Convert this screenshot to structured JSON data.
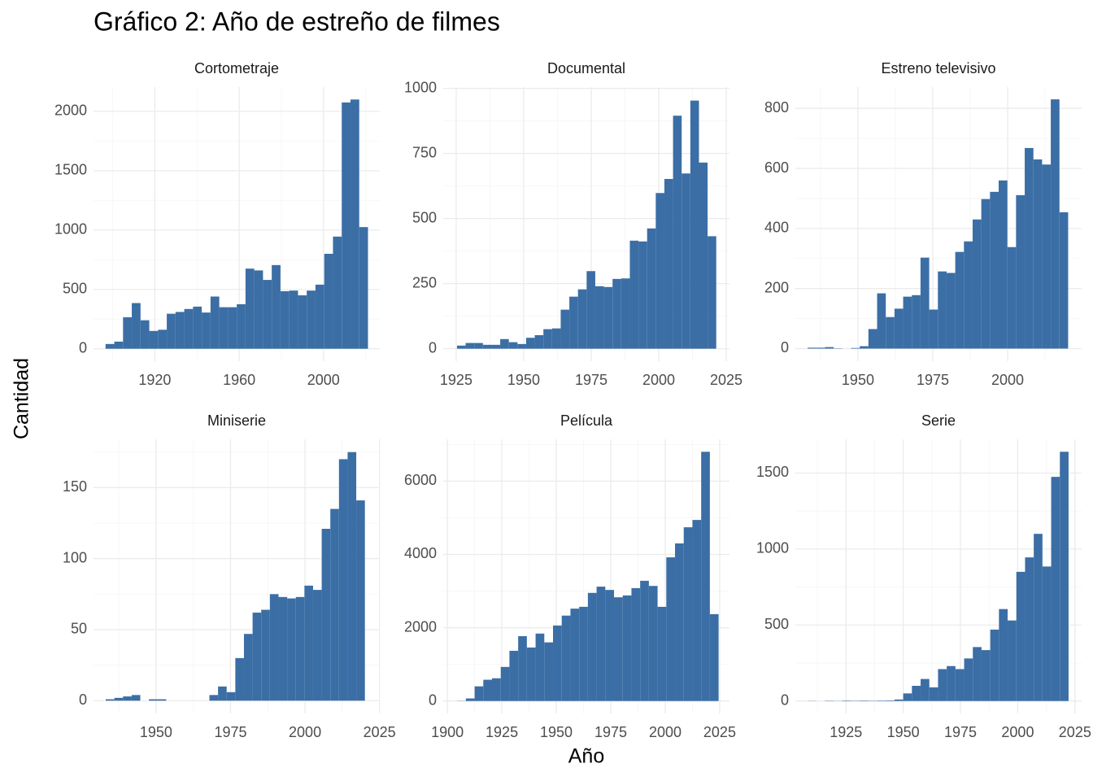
{
  "title": "Gráfico 2: Año de estreño de filmes",
  "x_label": "Año",
  "y_label": "Cantidad",
  "chart_data": [
    {
      "type": "histogram",
      "title": "Cortometraje",
      "color": "#3b6ea5",
      "grid": true,
      "bins": [
        1896.6,
        1900.75,
        1904.9,
        1909.05,
        1913.2,
        1917.35,
        1921.5,
        1925.65,
        1929.8,
        1933.95,
        1938.1,
        1942.25,
        1946.4,
        1950.55,
        1954.7,
        1958.85,
        1963,
        1967.15,
        1971.3,
        1975.45,
        1979.6,
        1983.75,
        1987.9,
        1992.05,
        1996.2,
        2000.35,
        2004.5,
        2008.65,
        2012.8,
        2016.95,
        2021.1
      ],
      "counts": [
        40,
        60,
        265,
        385,
        240,
        150,
        160,
        295,
        310,
        335,
        355,
        305,
        440,
        350,
        350,
        375,
        675,
        660,
        580,
        705,
        485,
        490,
        450,
        490,
        540,
        800,
        945,
        2075,
        2100,
        1025
      ],
      "xlim": [
        1890.9,
        2026.7
      ],
      "xticks": [
        1920,
        1960,
        2000
      ],
      "ylim": [
        -105,
        2205
      ],
      "yticks": [
        0,
        500,
        1000,
        1500,
        2000
      ]
    },
    {
      "type": "histogram",
      "title": "Documental",
      "color": "#3b6ea5",
      "grid": true,
      "bins": [
        1925.3,
        1928.5,
        1931.7,
        1934.9,
        1938.1,
        1941.3,
        1944.5,
        1947.7,
        1950.9,
        1954.1,
        1957.3,
        1960.5,
        1963.7,
        1966.9,
        1970.1,
        1973.3,
        1976.5,
        1979.7,
        1982.9,
        1986.1,
        1989.3,
        1992.5,
        1995.7,
        1998.9,
        2002.1,
        2005.3,
        2008.5,
        2011.7,
        2014.9,
        2018.1,
        2021.3
      ],
      "counts": [
        12,
        22,
        22,
        15,
        15,
        37,
        25,
        18,
        42,
        52,
        75,
        78,
        150,
        200,
        228,
        298,
        240,
        237,
        268,
        270,
        415,
        412,
        462,
        598,
        652,
        895,
        673,
        953,
        715,
        432
      ],
      "xlim": [
        1920.2,
        2026.2
      ],
      "xticks": [
        1925,
        1950,
        1975,
        2000,
        2025
      ],
      "ylim": [
        -48,
        1005
      ],
      "yticks": [
        0,
        250,
        500,
        750,
        1000
      ]
    },
    {
      "type": "histogram",
      "title": "Estreno televisivo",
      "color": "#3b6ea5",
      "grid": true,
      "bins": [
        1933.2,
        1936.1,
        1939,
        1941.9,
        1944.8,
        1947.7,
        1950.6,
        1953.5,
        1956.4,
        1959.3,
        1962.2,
        1965.1,
        1968,
        1970.9,
        1973.8,
        1976.7,
        1979.6,
        1982.5,
        1985.4,
        1988.3,
        1991.2,
        1994.1,
        1997,
        1999.9,
        2002.8,
        2005.7,
        2008.6,
        2011.5,
        2014.4,
        2017.3,
        2020.2
      ],
      "counts": [
        3,
        3,
        5,
        1,
        0,
        2,
        8,
        65,
        184,
        105,
        133,
        173,
        178,
        303,
        130,
        257,
        252,
        322,
        357,
        430,
        498,
        522,
        560,
        338,
        511,
        668,
        630,
        613,
        830,
        454
      ],
      "xlim": [
        1929.1,
        2024.7
      ],
      "xticks": [
        1950,
        1975,
        2000
      ],
      "ylim": [
        -42,
        871
      ],
      "yticks": [
        0,
        200,
        400,
        600,
        800
      ]
    },
    {
      "type": "histogram",
      "title": "Miniserie",
      "color": "#3b6ea5",
      "grid": true,
      "bins": [
        1933.1,
        1936,
        1938.9,
        1941.8,
        1944.7,
        1947.6,
        1950.5,
        1953.4,
        1956.3,
        1959.2,
        1962.1,
        1965,
        1967.9,
        1970.8,
        1973.7,
        1976.6,
        1979.5,
        1982.4,
        1985.3,
        1988.2,
        1991.1,
        1994,
        1996.9,
        1999.8,
        2002.7,
        2005.6,
        2008.5,
        2011.4,
        2014.3,
        2017.2,
        2020.1
      ],
      "counts": [
        1,
        2,
        3,
        4,
        0,
        1,
        1,
        0,
        0,
        0,
        0,
        0,
        4,
        10,
        6,
        30,
        47,
        62,
        64,
        75,
        73,
        72,
        73,
        81,
        78,
        121,
        135,
        170,
        175,
        141
      ],
      "xlim": [
        1929.0,
        2025.1
      ],
      "xticks": [
        1950,
        1975,
        2000,
        2025
      ],
      "ylim": [
        -9,
        184
      ],
      "yticks": [
        0,
        50,
        100,
        150
      ]
    },
    {
      "type": "histogram",
      "title": "Película",
      "color": "#3b6ea5",
      "grid": true,
      "bins": [
        1904.5,
        1908.5,
        1912.5,
        1916.5,
        1920.5,
        1924.5,
        1928.5,
        1932.5,
        1936.5,
        1940.5,
        1944.5,
        1948.5,
        1952.5,
        1956.5,
        1960.5,
        1964.5,
        1968.5,
        1972.5,
        1976.5,
        1980.5,
        1984.5,
        1988.5,
        1992.5,
        1996.5,
        2000.5,
        2004.5,
        2008.5,
        2012.5,
        2016.5,
        2020.5,
        2024.5
      ],
      "counts": [
        5,
        70,
        400,
        580,
        620,
        930,
        1370,
        1770,
        1460,
        1840,
        1600,
        2060,
        2330,
        2520,
        2570,
        2950,
        3120,
        3030,
        2830,
        2880,
        3080,
        3280,
        3140,
        2570,
        3920,
        4300,
        4740,
        4940,
        6800,
        2370
      ],
      "xlim": [
        1898.1,
        2029.5
      ],
      "xticks": [
        1900,
        1925,
        1950,
        1975,
        2000,
        2025
      ],
      "ylim": [
        -340,
        7140
      ],
      "yticks": [
        0,
        2000,
        4000,
        6000
      ]
    },
    {
      "type": "histogram",
      "title": "Serie",
      "color": "#3b6ea5",
      "grid": true,
      "bins": [
        1908.2,
        1912,
        1915.8,
        1919.6,
        1923.4,
        1927.2,
        1931,
        1934.8,
        1938.6,
        1942.4,
        1946.2,
        1950,
        1953.8,
        1957.6,
        1961.4,
        1965.2,
        1969,
        1972.8,
        1976.6,
        1980.4,
        1984.2,
        1988,
        1991.8,
        1995.6,
        1999.4,
        2003.2,
        2007,
        2010.8,
        2014.6,
        2018.4,
        2022.2
      ],
      "counts": [
        1,
        0,
        2,
        1,
        3,
        2,
        3,
        2,
        3,
        4,
        10,
        50,
        100,
        145,
        90,
        210,
        230,
        210,
        280,
        355,
        335,
        470,
        605,
        530,
        850,
        945,
        1100,
        885,
        1475,
        1640
      ],
      "xlim": [
        1902.9,
        2027.9
      ],
      "xticks": [
        1925,
        1950,
        1975,
        2000,
        2025
      ],
      "ylim": [
        -82,
        1722
      ],
      "yticks": [
        0,
        500,
        1000,
        1500
      ]
    }
  ]
}
